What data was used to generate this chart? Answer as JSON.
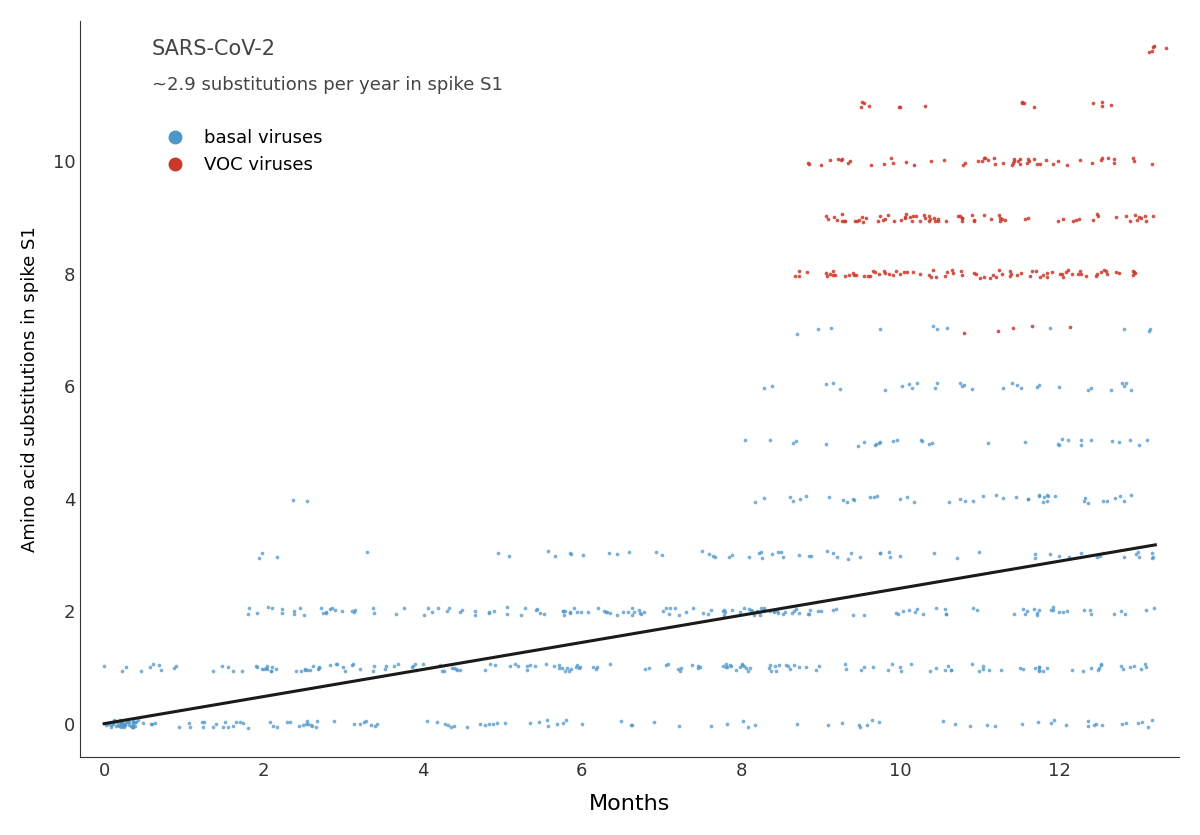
{
  "title_line1": "SARS-CoV-2",
  "title_line2": "~2.9 substitutions per year in spike S1",
  "xlabel": "Months",
  "ylabel": "Amino acid substitutions in spike S1",
  "xlim": [
    -0.3,
    13.5
  ],
  "ylim": [
    -0.6,
    12.5
  ],
  "xticks": [
    0,
    2,
    4,
    6,
    8,
    10,
    12
  ],
  "yticks": [
    0,
    2,
    4,
    6,
    8,
    10
  ],
  "basal_color": "#4E96C8",
  "voc_color": "#C8392A",
  "line_color": "#1a1a1a",
  "line_x": [
    0,
    13.2
  ],
  "line_y": [
    0,
    3.18
  ],
  "legend_basal": "basal viruses",
  "legend_voc": "VOC viruses",
  "dot_size": 7,
  "alpha_basal": 0.75,
  "alpha_voc": 0.85
}
